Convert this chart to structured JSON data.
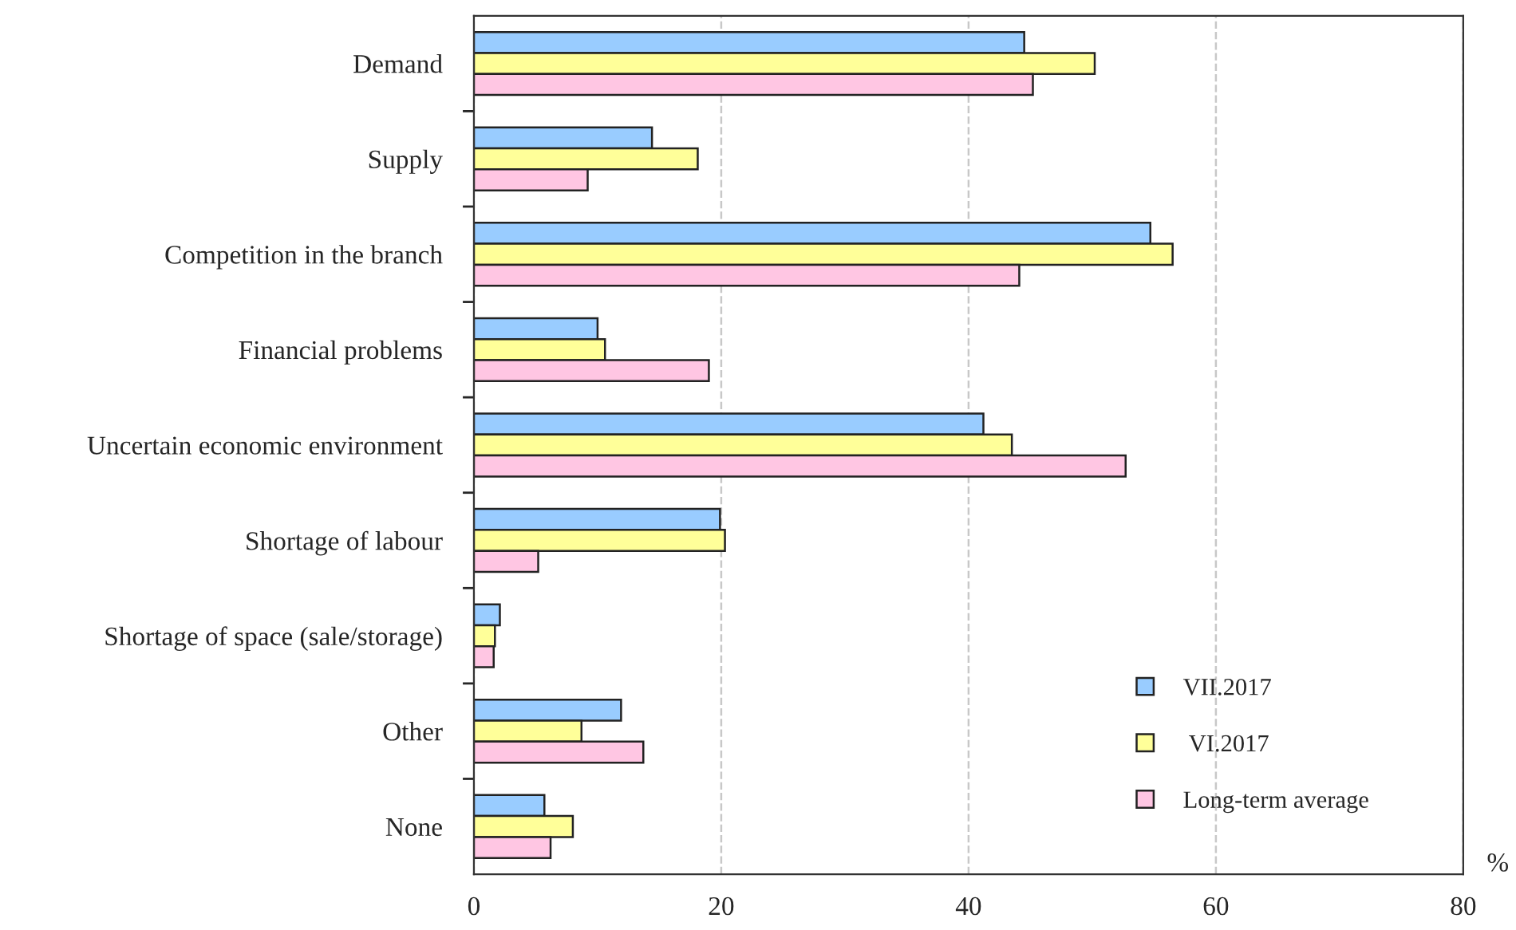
{
  "chart_data": {
    "type": "bar",
    "orientation": "horizontal",
    "xlabel": "%",
    "categories": [
      "Demand",
      "Supply",
      "Competition in the branch",
      "Financial problems",
      "Uncertain economic environment",
      "Shortage of labour",
      "Shortage of space (sale/storage)",
      "Other",
      "None"
    ],
    "series": [
      {
        "name": "VII.2017",
        "color": "#99ccff",
        "values": [
          44.5,
          14.4,
          54.7,
          10.0,
          41.2,
          19.9,
          2.1,
          11.9,
          5.7
        ]
      },
      {
        "name": " VI.2017",
        "color": "#ffff99",
        "values": [
          50.2,
          18.1,
          56.5,
          10.6,
          43.5,
          20.3,
          1.7,
          8.7,
          8.0
        ]
      },
      {
        "name": "Long-term average",
        "color": "#ffc6e3",
        "values": [
          45.2,
          9.2,
          44.1,
          19.0,
          52.7,
          5.2,
          1.6,
          13.7,
          6.2
        ]
      }
    ],
    "xlim": [
      0,
      80
    ],
    "xticks": [
      0,
      20,
      40,
      60,
      80
    ],
    "grid": "x",
    "legend": "bottom right"
  }
}
